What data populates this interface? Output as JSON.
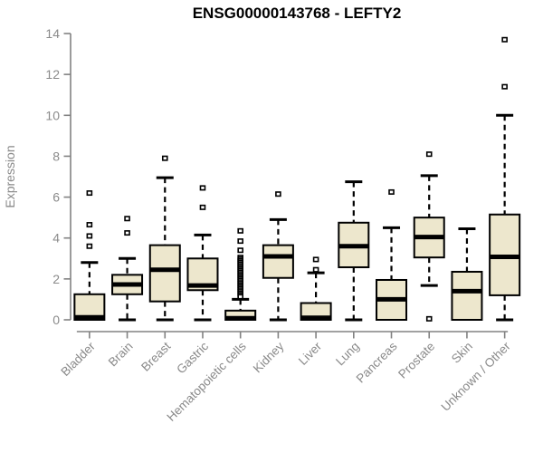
{
  "chart_data": {
    "type": "box",
    "title": "ENSG00000143768 - LEFTY2",
    "ylabel": "Expression",
    "xlabel": "",
    "ylim": [
      0,
      14
    ],
    "yticks": [
      0,
      2,
      4,
      6,
      8,
      10,
      12,
      14
    ],
    "grid": false,
    "legend": null,
    "categories": [
      "Bladder",
      "Brain",
      "Breast",
      "Gastric",
      "Hematopoietic cells",
      "Kidney",
      "Liver",
      "Lung",
      "Pancreas",
      "Prostate",
      "Skin",
      "Unknown / Other"
    ],
    "series": [
      {
        "name": "Bladder",
        "low": 0,
        "q1": 0,
        "median": 0.12,
        "q3": 1.25,
        "high": 2.8,
        "outliers": [
          6.2,
          4.65,
          4.1,
          3.6
        ]
      },
      {
        "name": "Brain",
        "low": 0,
        "q1": 1.25,
        "median": 1.73,
        "q3": 2.2,
        "high": 3.0,
        "outliers": [
          4.95,
          4.25
        ]
      },
      {
        "name": "Breast",
        "low": 0,
        "q1": 0.9,
        "median": 2.45,
        "q3": 3.65,
        "high": 6.95,
        "outliers": [
          7.9
        ]
      },
      {
        "name": "Gastric",
        "low": 0,
        "q1": 1.45,
        "median": 1.68,
        "q3": 3.0,
        "high": 4.15,
        "outliers": [
          6.45,
          5.5
        ]
      },
      {
        "name": "Hematopoietic cells",
        "low": 0,
        "q1": 0,
        "median": 0.08,
        "q3": 0.45,
        "high": 1.0,
        "outliers": [
          4.35,
          3.85,
          3.4,
          3.05,
          2.97,
          2.89,
          2.81,
          2.73,
          2.65,
          2.57,
          2.49,
          2.41,
          2.33,
          2.25,
          2.17,
          2.09,
          2.01,
          1.93,
          1.85,
          1.77,
          1.69,
          1.61,
          1.53,
          1.45,
          1.37,
          1.29,
          1.21,
          1.13
        ]
      },
      {
        "name": "Kidney",
        "low": 0,
        "q1": 2.05,
        "median": 3.1,
        "q3": 3.65,
        "high": 4.9,
        "outliers": [
          6.15
        ]
      },
      {
        "name": "Liver",
        "low": 0,
        "q1": 0,
        "median": 0.1,
        "q3": 0.82,
        "high": 2.3,
        "outliers": [
          2.95,
          2.45
        ]
      },
      {
        "name": "Lung",
        "low": 0,
        "q1": 2.57,
        "median": 3.6,
        "q3": 4.75,
        "high": 6.75,
        "outliers": []
      },
      {
        "name": "Pancreas",
        "low": 0,
        "q1": 0,
        "median": 1.0,
        "q3": 1.95,
        "high": 4.5,
        "outliers": [
          6.25
        ]
      },
      {
        "name": "Prostate",
        "low": 1.68,
        "q1": 3.05,
        "median": 4.05,
        "q3": 5.0,
        "high": 7.05,
        "outliers": [
          8.1,
          0.05
        ]
      },
      {
        "name": "Skin",
        "low": 0,
        "q1": 0,
        "median": 1.4,
        "q3": 2.35,
        "high": 4.45,
        "outliers": []
      },
      {
        "name": "Unknown / Other",
        "low": 0,
        "q1": 1.2,
        "median": 3.08,
        "q3": 5.15,
        "high": 10.0,
        "outliers": [
          13.7,
          11.4
        ]
      }
    ],
    "colors": {
      "box_fill": "#EDE7CD",
      "box_border": "#000000",
      "median": "#000000",
      "whisker": "#000000",
      "axis": "#828282",
      "tick_label": "#8a8a8a",
      "title": "#000000",
      "background": "#ffffff"
    }
  }
}
